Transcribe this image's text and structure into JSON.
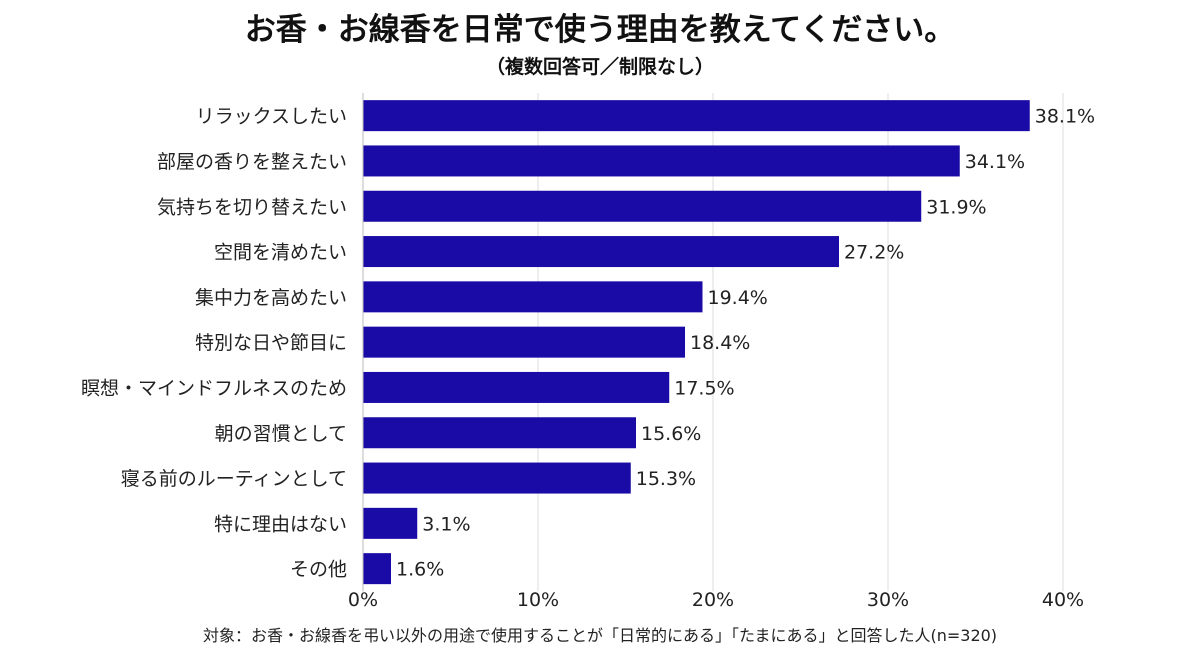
{
  "chart_data": {
    "type": "bar",
    "orientation": "horizontal",
    "title": "お香・お線香を日常で使う理由を教えてください。",
    "subtitle": "（複数回答可／制限なし）",
    "footnote": "対象：お香・お線香を弔い以外の用途で使用することが「日常的にある」「たまにある」と回答した人(n=320)",
    "categories": [
      "リラックスしたい",
      "部屋の香りを整えたい",
      "気持ちを切り替えたい",
      "空間を清めたい",
      "集中力を高めたい",
      "特別な日や節目に",
      "瞑想・マインドフルネスのため",
      "朝の習慣として",
      "寝る前のルーティンとして",
      "特に理由はない",
      "その他"
    ],
    "values": [
      38.1,
      34.1,
      31.9,
      27.2,
      19.4,
      18.4,
      17.5,
      15.6,
      15.3,
      3.1,
      1.6
    ],
    "value_labels": [
      "38.1%",
      "34.1%",
      "31.9%",
      "27.2%",
      "19.4%",
      "18.4%",
      "17.5%",
      "15.6%",
      "15.3%",
      "3.1%",
      "1.6%"
    ],
    "xlim": [
      0,
      40
    ],
    "xticks": [
      0,
      10,
      20,
      30,
      40
    ],
    "xtick_labels": [
      "0%",
      "10%",
      "20%",
      "30%",
      "40%"
    ],
    "grid": true,
    "bar_color": "#1a0aa6"
  }
}
